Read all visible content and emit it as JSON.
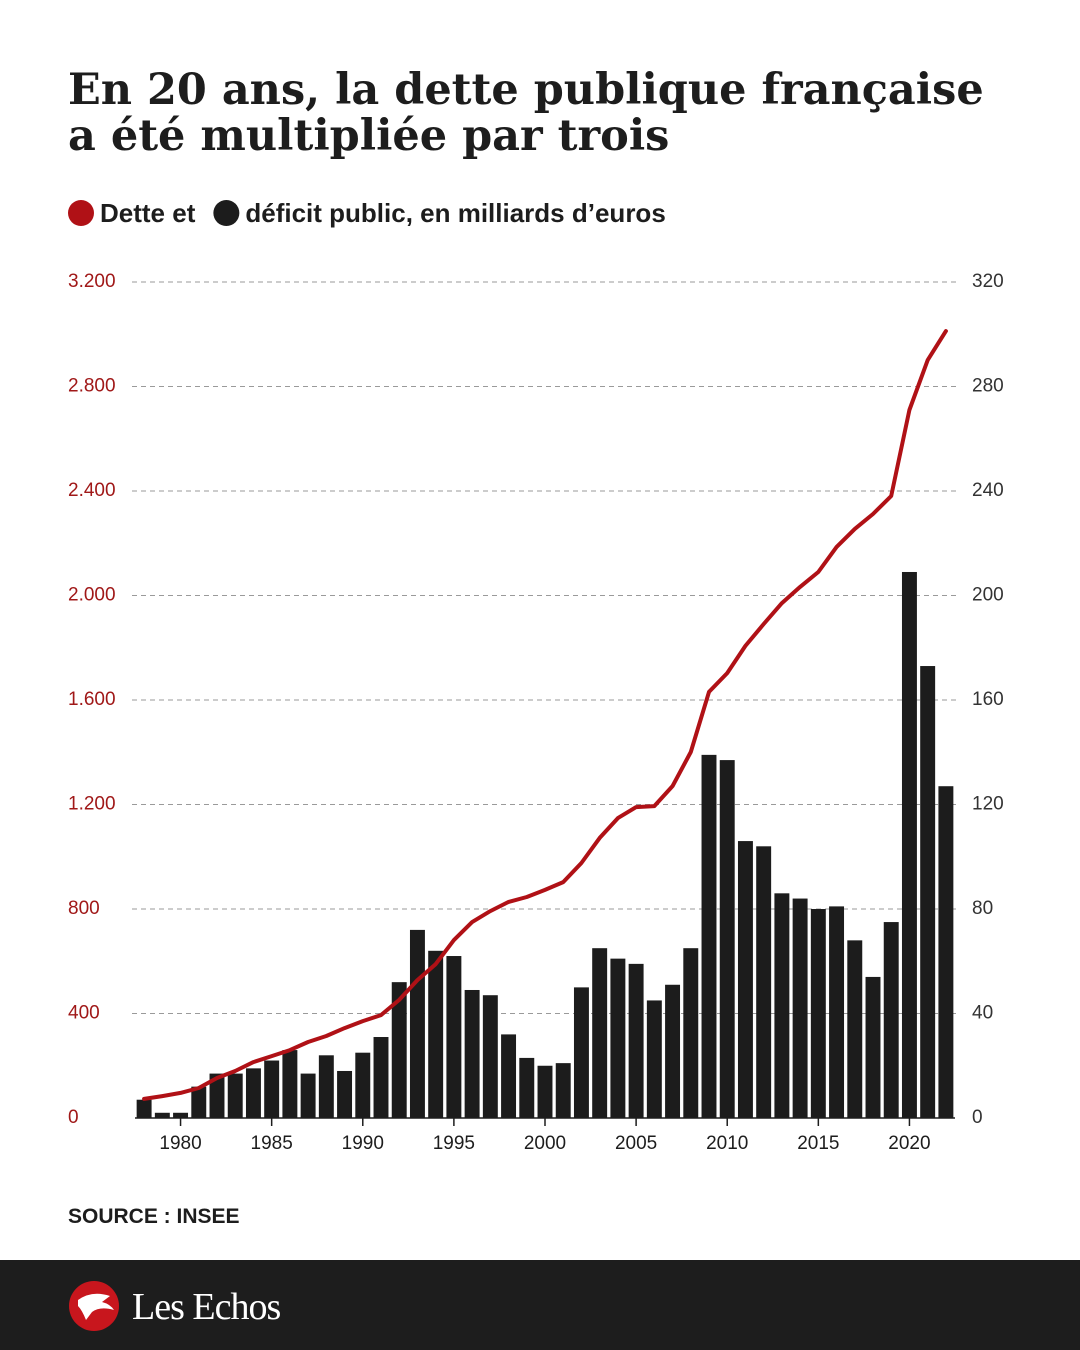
{
  "chart_data": {
    "type": "bar-line",
    "title_lines": [
      "En 20 ans, la dette publique française",
      "a été multipliée par trois"
    ],
    "x": [
      1978,
      1979,
      1980,
      1981,
      1982,
      1983,
      1984,
      1985,
      1986,
      1987,
      1988,
      1989,
      1990,
      1991,
      1992,
      1993,
      1994,
      1995,
      1996,
      1997,
      1998,
      1999,
      2000,
      2001,
      2002,
      2003,
      2004,
      2005,
      2006,
      2007,
      2008,
      2009,
      2010,
      2011,
      2012,
      2013,
      2014,
      2015,
      2016,
      2017,
      2018,
      2019,
      2020,
      2021,
      2022
    ],
    "xlim": [
      1977.5,
      2022.5
    ],
    "xticks": [
      1980,
      1985,
      1990,
      1995,
      2000,
      2005,
      2010,
      2015,
      2020
    ],
    "ylim": [
      0,
      3200
    ],
    "yticks": [
      0,
      400,
      800,
      {
        "value": 1200,
        "label": "1.200"
      },
      {
        "value": 1600,
        "label": "1.600"
      },
      {
        "value": 2000,
        "label": "2.000"
      },
      {
        "value": 2400,
        "label": "2.400"
      },
      {
        "value": 2800,
        "label": "2.800"
      },
      {
        "value": 3200,
        "label": "3.200"
      }
    ],
    "y2lim": [
      0,
      320
    ],
    "y2ticks": [
      0,
      40,
      80,
      120,
      160,
      200,
      240,
      280,
      320
    ],
    "grid": true,
    "series": [
      {
        "name": "Dette et",
        "color": "#b01116",
        "kind": "line",
        "values": [
          73,
          84,
          96,
          115,
          153,
          180,
          214,
          237,
          260,
          291,
          314,
          344,
          371,
          394,
          452,
          528,
          589,
          681,
          750,
          792,
          827,
          846,
          873,
          903,
          976,
          1072,
          1148,
          1190,
          1194,
          1271,
          1401,
          1631,
          1703,
          1807,
          1891,
          1971,
          2033,
          2090,
          2186,
          2255,
          2312,
          2381,
          2710,
          2901,
          3012
        ]
      },
      {
        "name": "déficit public, en milliards d’euros",
        "color": "#1c1c1c",
        "kind": "bar",
        "axis": "y2",
        "values": [
          7,
          2,
          2,
          12,
          17,
          17,
          19,
          22,
          26,
          17,
          24,
          18,
          25,
          31,
          52,
          72,
          64,
          62,
          49,
          47,
          32,
          23,
          20,
          21,
          50,
          65,
          61,
          59,
          45,
          51,
          65,
          139,
          137,
          106,
          104,
          86,
          84,
          80,
          81,
          68,
          54,
          75,
          209,
          173,
          127
        ]
      }
    ],
    "source": "SOURCE : INSEE"
  },
  "brand": "Les Echos"
}
